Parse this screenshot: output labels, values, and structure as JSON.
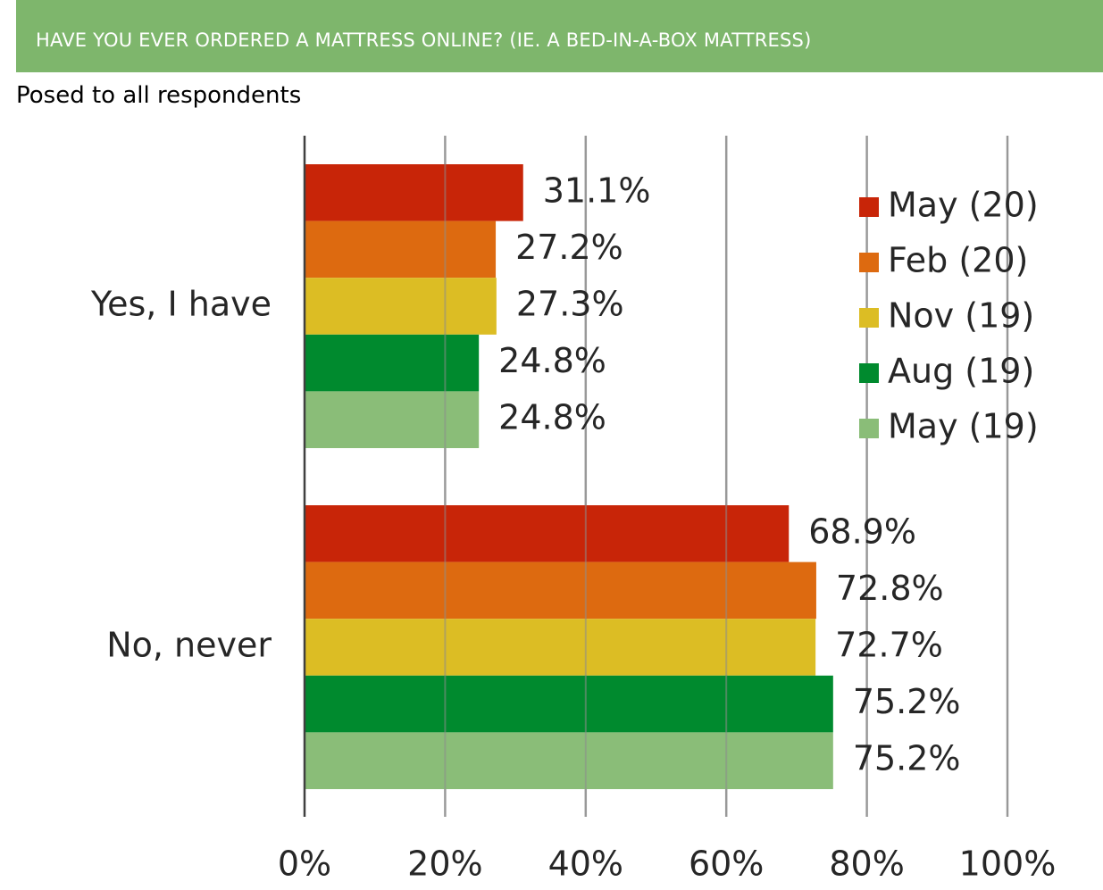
{
  "header": {
    "title": "HAVE YOU EVER ORDERED A MATTRESS ONLINE? (IE. A BED-IN-A-BOX MATTRESS)"
  },
  "subtitle": "Posed to all respondents",
  "chart_data": {
    "type": "bar",
    "orientation": "horizontal",
    "categories": [
      "Yes, I have",
      "No, never"
    ],
    "series": [
      {
        "name": "May (20)",
        "color": "#c82508",
        "values": [
          31.1,
          68.9
        ],
        "labels": [
          "31.1%",
          "68.9%"
        ]
      },
      {
        "name": "Feb (20)",
        "color": "#dd6a10",
        "values": [
          27.2,
          72.8
        ],
        "labels": [
          "27.2%",
          "72.8%"
        ]
      },
      {
        "name": "Nov (19)",
        "color": "#dcbd24",
        "values": [
          27.3,
          72.7
        ],
        "labels": [
          "27.3%",
          "72.7%"
        ]
      },
      {
        "name": "Aug (19)",
        "color": "#008a2e",
        "values": [
          24.8,
          75.2
        ],
        "labels": [
          "24.8%",
          "75.2%"
        ]
      },
      {
        "name": "May (19)",
        "color": "#8abd78",
        "values": [
          24.8,
          75.2
        ],
        "labels": [
          "24.8%",
          "75.2%"
        ]
      }
    ],
    "x_ticks": [
      "0%",
      "20%",
      "40%",
      "60%",
      "80%",
      "100%"
    ],
    "xlim": [
      0,
      100
    ],
    "xlabel": "",
    "ylabel": "",
    "grid": true,
    "legend_position": "top-right"
  }
}
